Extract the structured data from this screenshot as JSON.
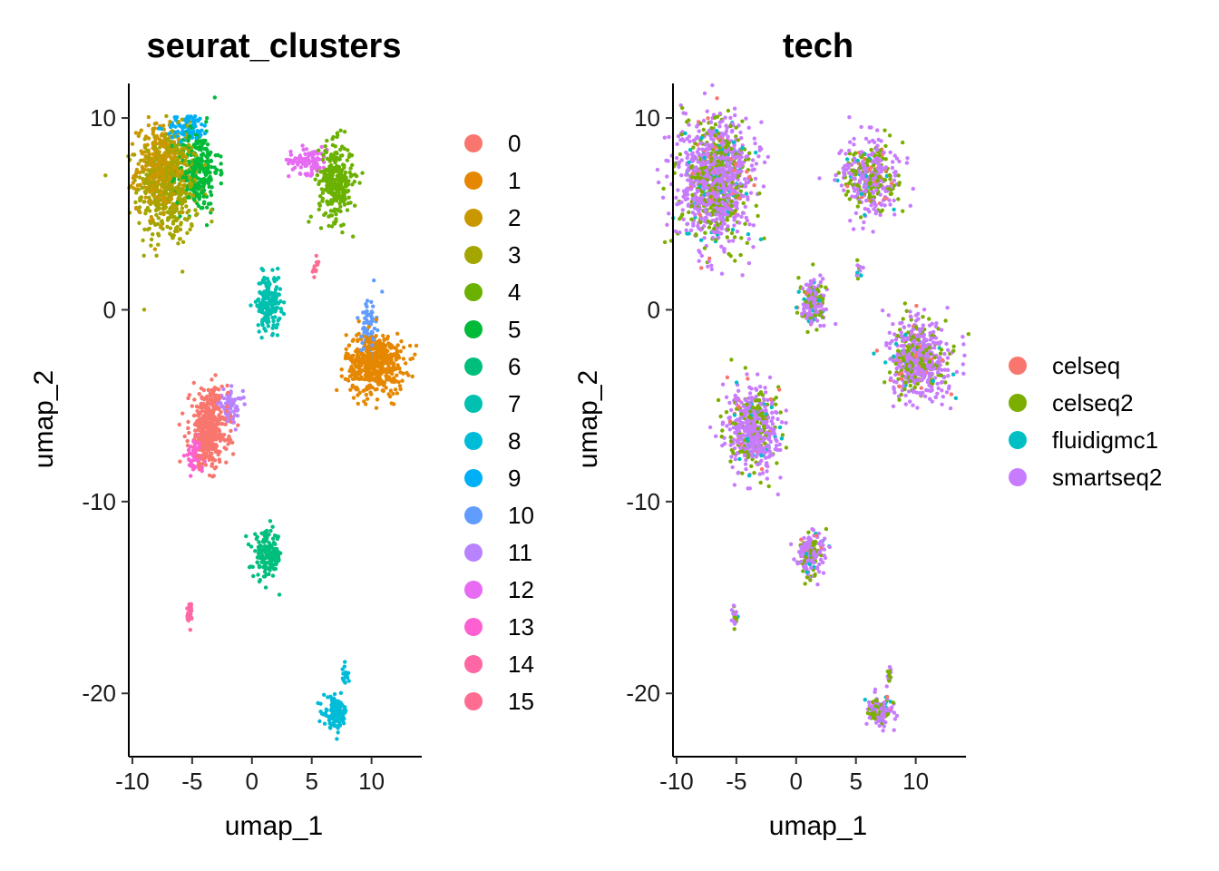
{
  "chart_data": [
    {
      "type": "scatter",
      "title": "seurat_clusters",
      "xlabel": "umap_1",
      "ylabel": "umap_2",
      "xlim": [
        -10.3,
        14.2
      ],
      "ylim": [
        -23.3,
        11.8
      ],
      "xticks": [
        -10,
        -5,
        0,
        5,
        10
      ],
      "yticks": [
        10,
        0,
        -10,
        -20
      ],
      "xtick_labels": [
        "-10",
        "-5",
        "0",
        "5",
        "10"
      ],
      "ytick_labels": [
        "10",
        "0",
        "-10",
        "-20"
      ],
      "grid": false,
      "legend_position": "right",
      "legend": [
        {
          "label": "0",
          "color": "#F8766D"
        },
        {
          "label": "1",
          "color": "#E58700"
        },
        {
          "label": "2",
          "color": "#C99800"
        },
        {
          "label": "3",
          "color": "#A3A500"
        },
        {
          "label": "4",
          "color": "#6BB100"
        },
        {
          "label": "5",
          "color": "#00BA38"
        },
        {
          "label": "6",
          "color": "#00BF7D"
        },
        {
          "label": "7",
          "color": "#00C0AF"
        },
        {
          "label": "8",
          "color": "#00BCD8"
        },
        {
          "label": "9",
          "color": "#00B0F6"
        },
        {
          "label": "10",
          "color": "#619CFF"
        },
        {
          "label": "11",
          "color": "#B983FF"
        },
        {
          "label": "12",
          "color": "#E76BF3"
        },
        {
          "label": "13",
          "color": "#FD61D1"
        },
        {
          "label": "14",
          "color": "#FF67A4"
        },
        {
          "label": "15",
          "color": "#FF6C91"
        }
      ],
      "clusters": [
        {
          "series": "3",
          "cx": -7.0,
          "cy": 6.3,
          "sx": 1.3,
          "sy": 1.5,
          "n": 420
        },
        {
          "series": "2",
          "cx": -7.6,
          "cy": 7.4,
          "sx": 1.0,
          "sy": 1.1,
          "n": 360
        },
        {
          "series": "5",
          "cx": -4.6,
          "cy": 7.3,
          "sx": 0.9,
          "sy": 1.1,
          "n": 280
        },
        {
          "series": "9",
          "cx": -5.4,
          "cy": 9.5,
          "sx": 0.9,
          "sy": 0.35,
          "n": 90
        },
        {
          "series": "12",
          "cx": 4.7,
          "cy": 7.8,
          "sx": 0.8,
          "sy": 0.35,
          "n": 90
        },
        {
          "series": "4",
          "cx": 7.0,
          "cy": 6.7,
          "sx": 0.7,
          "sy": 1.0,
          "n": 300
        },
        {
          "series": "15",
          "cx": 5.3,
          "cy": 2.1,
          "sx": 0.15,
          "sy": 0.3,
          "n": 12
        },
        {
          "series": "7",
          "cx": 1.4,
          "cy": 0.4,
          "sx": 0.5,
          "sy": 0.7,
          "n": 180
        },
        {
          "series": "1",
          "cx": 10.3,
          "cy": -2.8,
          "sx": 1.2,
          "sy": 0.8,
          "n": 520
        },
        {
          "series": "10",
          "cx": 9.8,
          "cy": -0.8,
          "sx": 0.3,
          "sy": 0.8,
          "n": 70
        },
        {
          "series": "0",
          "cx": -3.6,
          "cy": -6.2,
          "sx": 0.8,
          "sy": 1.0,
          "n": 420
        },
        {
          "series": "11",
          "cx": -1.8,
          "cy": -5.0,
          "sx": 0.5,
          "sy": 0.4,
          "n": 70
        },
        {
          "series": "13",
          "cx": -4.8,
          "cy": -7.6,
          "sx": 0.4,
          "sy": 0.4,
          "n": 60
        },
        {
          "series": "6",
          "cx": 1.3,
          "cy": -12.8,
          "sx": 0.6,
          "sy": 0.6,
          "n": 170
        },
        {
          "series": "14",
          "cx": -5.2,
          "cy": -15.9,
          "sx": 0.12,
          "sy": 0.3,
          "n": 25
        },
        {
          "series": "8",
          "cx": 7.0,
          "cy": -21.0,
          "sx": 0.5,
          "sy": 0.4,
          "n": 130
        },
        {
          "series": "8",
          "cx": 7.8,
          "cy": -19.2,
          "sx": 0.12,
          "sy": 0.3,
          "n": 15
        }
      ]
    },
    {
      "type": "scatter",
      "title": "tech",
      "xlabel": "umap_1",
      "ylabel": "umap_2",
      "xlim": [
        -10.3,
        14.2
      ],
      "ylim": [
        -23.3,
        11.8
      ],
      "xticks": [
        -10,
        -5,
        0,
        5,
        10
      ],
      "yticks": [
        10,
        0,
        -10,
        -20
      ],
      "xtick_labels": [
        "-10",
        "-5",
        "0",
        "5",
        "10"
      ],
      "ytick_labels": [
        "10",
        "0",
        "-10",
        "-20"
      ],
      "grid": false,
      "legend_position": "right",
      "legend": [
        {
          "label": "celseq",
          "color": "#F8766D"
        },
        {
          "label": "celseq2",
          "color": "#7CAE00"
        },
        {
          "label": "fluidigmc1",
          "color": "#00BFC4"
        },
        {
          "label": "smartseq2",
          "color": "#C77CFF"
        }
      ],
      "mix": [
        0.04,
        0.28,
        0.05,
        0.63
      ],
      "clusters": [
        {
          "cx": -6.8,
          "cy": 6.8,
          "sx": 1.5,
          "sy": 1.6,
          "n": 1150
        },
        {
          "cx": 6.2,
          "cy": 7.0,
          "sx": 1.3,
          "sy": 1.0,
          "n": 390
        },
        {
          "cx": 5.3,
          "cy": 2.1,
          "sx": 0.15,
          "sy": 0.3,
          "n": 12
        },
        {
          "cx": 1.4,
          "cy": 0.4,
          "sx": 0.5,
          "sy": 0.7,
          "n": 180
        },
        {
          "cx": 10.2,
          "cy": -2.5,
          "sx": 1.2,
          "sy": 1.0,
          "n": 590
        },
        {
          "cx": -3.6,
          "cy": -6.2,
          "sx": 1.1,
          "sy": 1.1,
          "n": 550
        },
        {
          "cx": 1.3,
          "cy": -12.8,
          "sx": 0.6,
          "sy": 0.6,
          "n": 170
        },
        {
          "cx": -5.2,
          "cy": -15.9,
          "sx": 0.12,
          "sy": 0.3,
          "n": 25
        },
        {
          "cx": 7.0,
          "cy": -21.0,
          "sx": 0.5,
          "sy": 0.4,
          "n": 130
        },
        {
          "cx": 7.8,
          "cy": -19.2,
          "sx": 0.12,
          "sy": 0.3,
          "n": 15
        }
      ]
    }
  ]
}
